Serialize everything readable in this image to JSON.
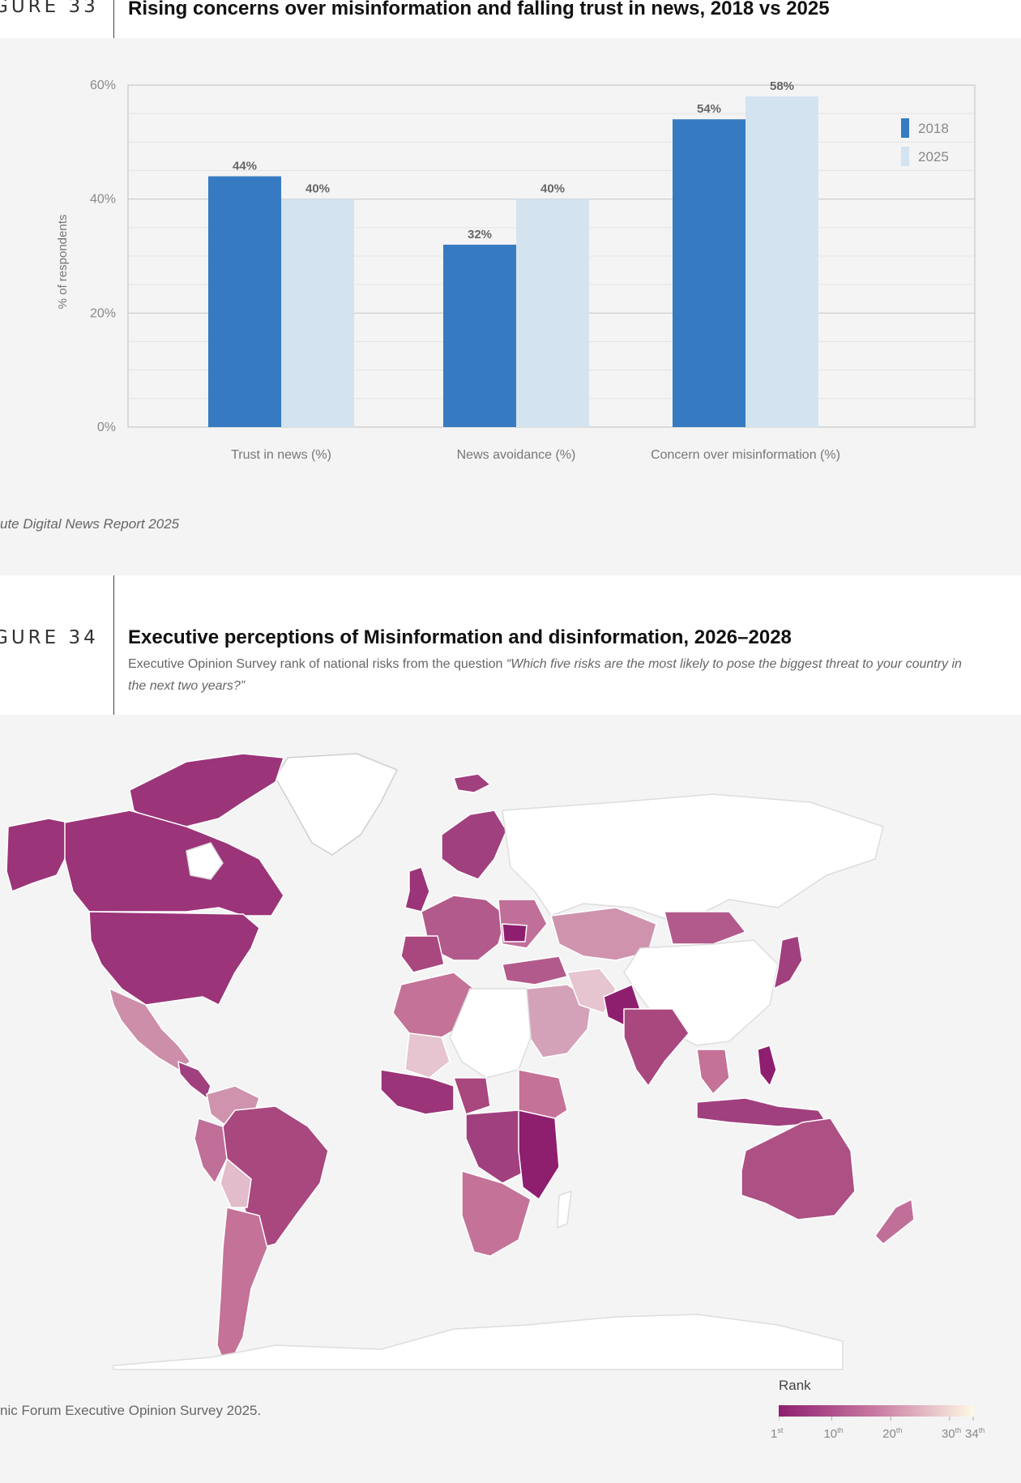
{
  "fig33": {
    "label": "GURE 33",
    "title": "Rising concerns over misinformation and falling trust in news, 2018 vs 2025",
    "source": "ute Digital News Report 2025"
  },
  "chart_data": [
    {
      "type": "bar",
      "title": "Rising concerns over misinformation and falling trust in news, 2018 vs 2025",
      "categories": [
        "Trust in news (%)",
        "News avoidance (%)",
        "Concern over misinformation (%)"
      ],
      "series": [
        {
          "name": "2018",
          "values": [
            44,
            32,
            54
          ],
          "color": "#367bc1"
        },
        {
          "name": "2025",
          "values": [
            40,
            40,
            58
          ],
          "color": "#d3e3f0"
        }
      ],
      "ylabel": "% of respondents",
      "ylim": [
        0,
        60
      ],
      "yticks": [
        "0%",
        "20%",
        "40%",
        "60%"
      ],
      "data_labels": [
        [
          "44%",
          "32%",
          "54%"
        ],
        [
          "40%",
          "40%",
          "58%"
        ]
      ],
      "grid": true,
      "legend": "top-right"
    },
    {
      "type": "heatmap",
      "title": "Executive perceptions of Misinformation and disinformation, 2026–2028",
      "legend_title": "Rank",
      "scale_ticks": [
        {
          "num": "1",
          "sup": "st"
        },
        {
          "num": "10",
          "sup": "th"
        },
        {
          "num": "20",
          "sup": "th"
        },
        {
          "num": "30",
          "sup": "th"
        },
        {
          "num": "34",
          "sup": "th"
        }
      ],
      "scale_range": [
        1,
        34
      ],
      "color_low_rank": "#8e1f6f",
      "color_high_rank": "#fdf8e4",
      "no_data_color": "#ffffff"
    }
  ],
  "fig34": {
    "label": "GURE 34",
    "title": "Executive perceptions of Misinformation and disinformation, 2026–2028",
    "subtitle_plain": "Executive Opinion Survey rank of national risks from the question ",
    "subtitle_quote": "“Which five risks are the most likely to pose the biggest threat to your country in the next two years?”",
    "source": "nic Forum Executive Opinion Survey 2025."
  }
}
